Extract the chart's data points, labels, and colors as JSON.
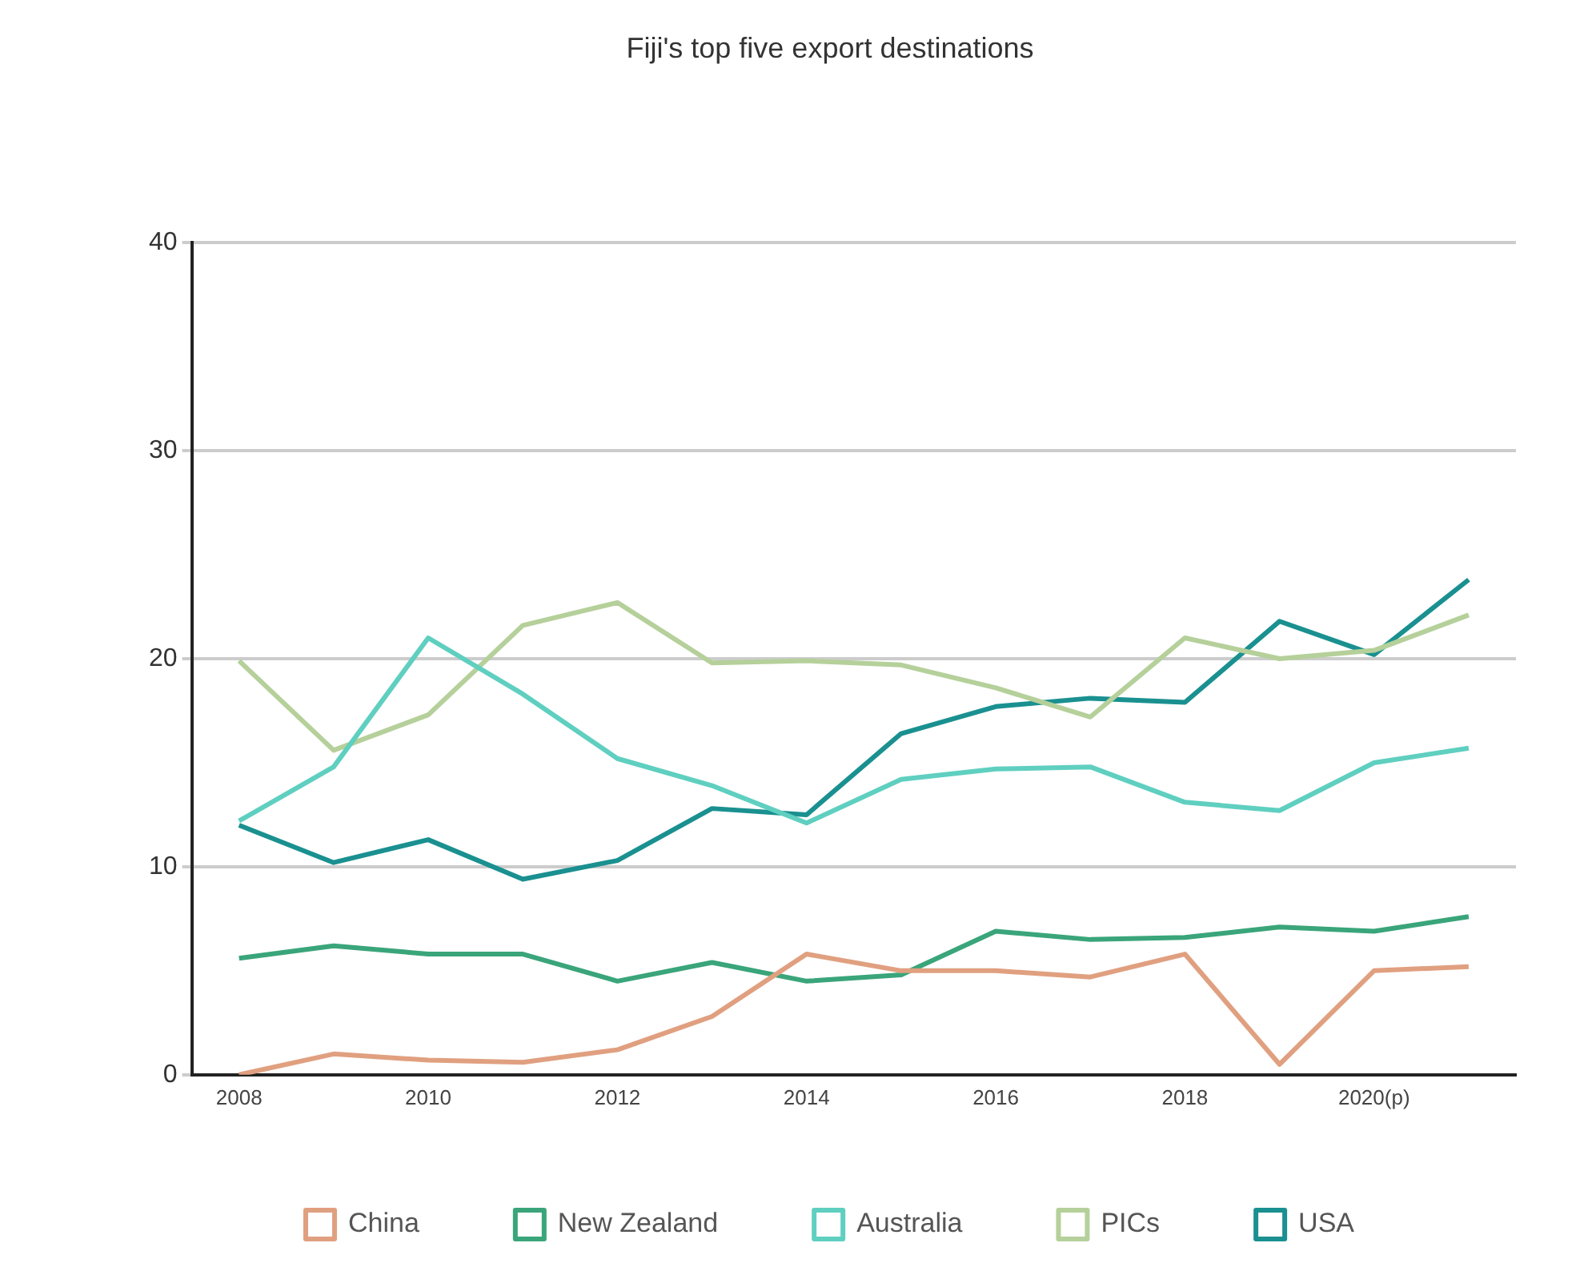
{
  "chart_data": {
    "type": "line",
    "title": "Fiji's top five export destinations",
    "categories": [
      "2008",
      null,
      "2010",
      null,
      "2012",
      null,
      "2014",
      null,
      "2016",
      null,
      "2018",
      null,
      "2020(p)",
      null
    ],
    "series": [
      {
        "name": "China",
        "color": "#e0a080",
        "values": [
          0,
          1.0,
          0.7,
          0.6,
          1.2,
          2.8,
          5.8,
          5.0,
          5.0,
          4.7,
          5.8,
          0.5,
          5.0,
          5.2
        ]
      },
      {
        "name": "New Zealand",
        "color": "#3aa57a",
        "values": [
          5.6,
          6.2,
          5.8,
          5.8,
          4.5,
          5.4,
          4.5,
          4.8,
          6.9,
          6.5,
          6.6,
          7.1,
          6.9,
          7.6
        ]
      },
      {
        "name": "Australia",
        "color": "#5fcfc0",
        "values": [
          12.2,
          14.8,
          21.0,
          18.3,
          15.2,
          13.9,
          12.1,
          14.2,
          14.7,
          14.8,
          13.1,
          12.7,
          15.0,
          15.7
        ]
      },
      {
        "name": "PICs",
        "color": "#b5d09a",
        "values": [
          19.9,
          15.6,
          17.3,
          21.6,
          22.7,
          19.8,
          19.9,
          19.7,
          18.6,
          17.2,
          21.0,
          20.0,
          20.4,
          22.1
        ]
      },
      {
        "name": "USA",
        "color": "#1a9090",
        "values": [
          12.0,
          10.2,
          11.3,
          9.4,
          10.3,
          12.8,
          12.5,
          16.4,
          17.7,
          18.1,
          17.9,
          21.8,
          20.2,
          23.8
        ]
      }
    ],
    "ylim": [
      0,
      40
    ],
    "yticks": [
      0,
      10,
      20,
      30,
      40
    ],
    "grid": "y",
    "legend": "bottom",
    "marker": "none",
    "line_style": "solid"
  }
}
